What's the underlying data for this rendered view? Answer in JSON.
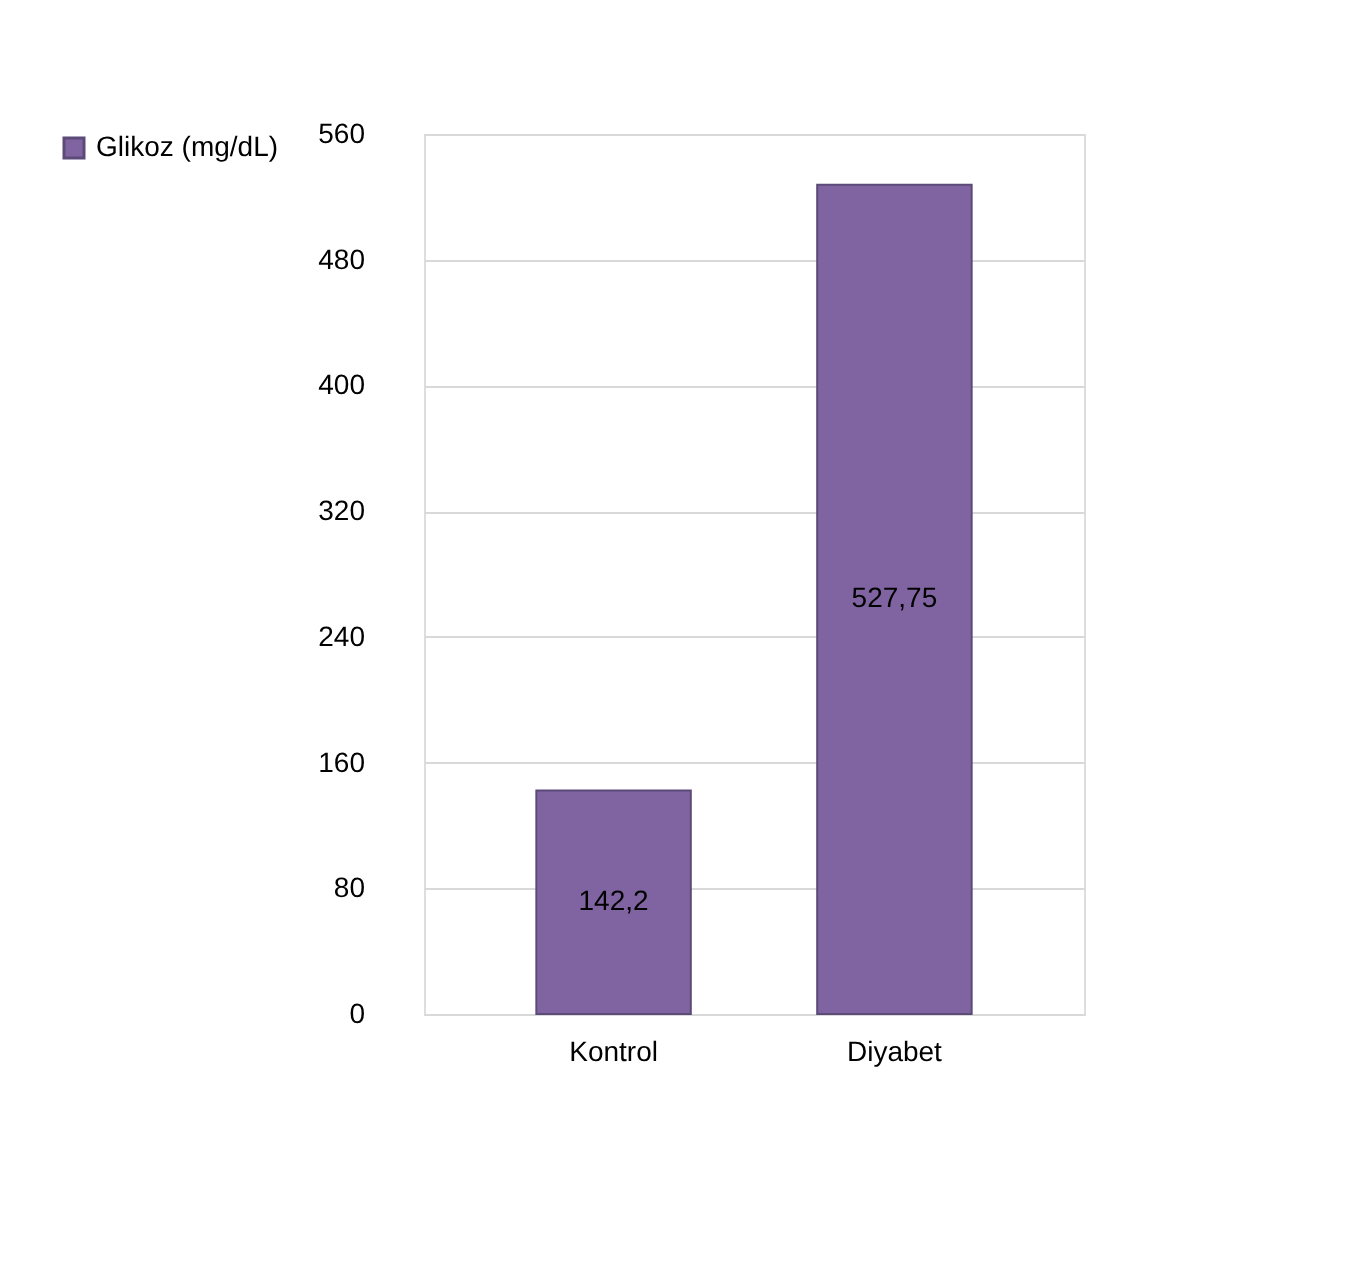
{
  "chart_data": {
    "type": "bar",
    "categories": [
      "Kontrol",
      "Diyabet"
    ],
    "series": [
      {
        "name": "Glikoz (mg/dL)",
        "color": "#8064a2",
        "values": [
          142.2,
          527.75
        ],
        "value_labels": [
          "142,2",
          "527,75"
        ]
      }
    ],
    "ylim": [
      0,
      560
    ],
    "yticks": [
      0,
      80,
      160,
      240,
      320,
      400,
      480,
      560
    ],
    "grid": "y",
    "legend": "left"
  }
}
